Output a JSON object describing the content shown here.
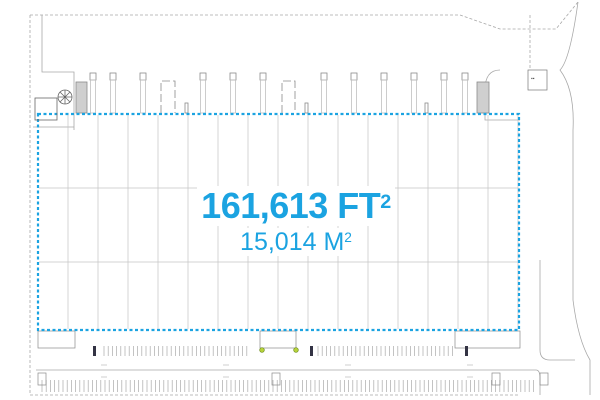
{
  "building": {
    "area_ft": "161,613 FT",
    "area_ft_sup": "2",
    "area_m": "15,014 M",
    "area_m_sup": "2",
    "outline_color": "#1ba3e1",
    "text_color": "#1ba3e1",
    "line_color": "#9a9a9a"
  }
}
